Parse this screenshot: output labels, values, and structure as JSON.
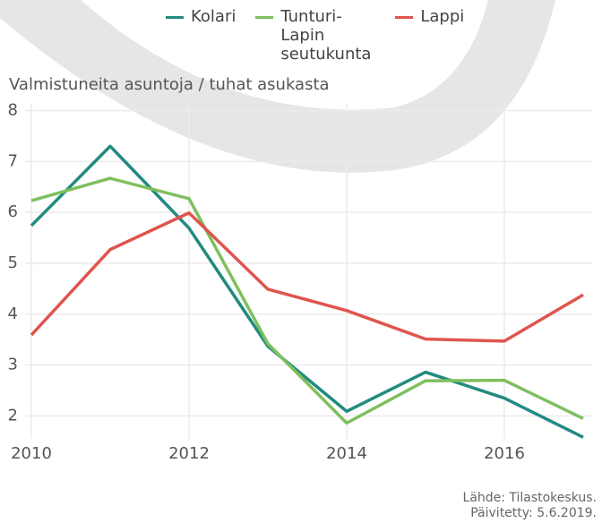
{
  "chart_data": {
    "type": "line",
    "y_label": "Valmistuneita asuntoja / tuhat asukasta",
    "x": [
      2010,
      2011,
      2012,
      2013,
      2014,
      2015,
      2016,
      2017
    ],
    "series": [
      {
        "name": "Kolari",
        "color": "#228b80",
        "values": [
          5.74,
          7.3,
          5.69,
          3.37,
          2.09,
          2.86,
          2.35,
          1.58
        ]
      },
      {
        "name": "Tunturi-Lapin seutukunta",
        "color": "#7fbf5f",
        "values": [
          6.23,
          6.67,
          6.27,
          3.42,
          1.86,
          2.69,
          2.7,
          1.95
        ]
      },
      {
        "name": "Lappi",
        "color": "#e0544e",
        "values": [
          3.59,
          5.27,
          5.99,
          4.49,
          4.07,
          3.51,
          3.47,
          4.38
        ]
      }
    ],
    "xlim": [
      2010,
      2017
    ],
    "xticks": [
      2010,
      2012,
      2014,
      2016
    ],
    "ylim": [
      1.55,
      8.15
    ],
    "yticks": [
      2,
      3,
      4,
      5,
      6,
      7,
      8
    ],
    "grid": true,
    "legend": "top",
    "source": [
      "Lähde: Tilastokeskus.",
      "Päivitetty: 5.6.2019."
    ]
  }
}
